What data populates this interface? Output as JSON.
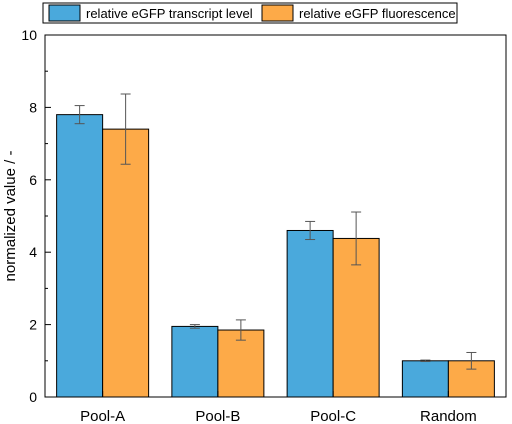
{
  "chart_data": {
    "type": "bar",
    "title": "",
    "xlabel": "",
    "ylabel": "normalized value / -",
    "ylim": [
      0,
      10
    ],
    "yticks": [
      0,
      2,
      4,
      6,
      8,
      10
    ],
    "grid": false,
    "legend_position": "top",
    "categories": [
      "Pool-A",
      "Pool-B",
      "Pool-C",
      "Random"
    ],
    "series": [
      {
        "name": "relative eGFP transcript level",
        "color": "#4aa9dc",
        "values": [
          7.8,
          1.95,
          4.6,
          1.0
        ],
        "errors": [
          0.25,
          0.05,
          0.25,
          0.02
        ]
      },
      {
        "name": "relative eGFP fluorescence",
        "color": "#fdaa48",
        "values": [
          7.4,
          1.85,
          4.38,
          1.0
        ],
        "errors": [
          0.97,
          0.28,
          0.73,
          0.23
        ]
      }
    ]
  }
}
